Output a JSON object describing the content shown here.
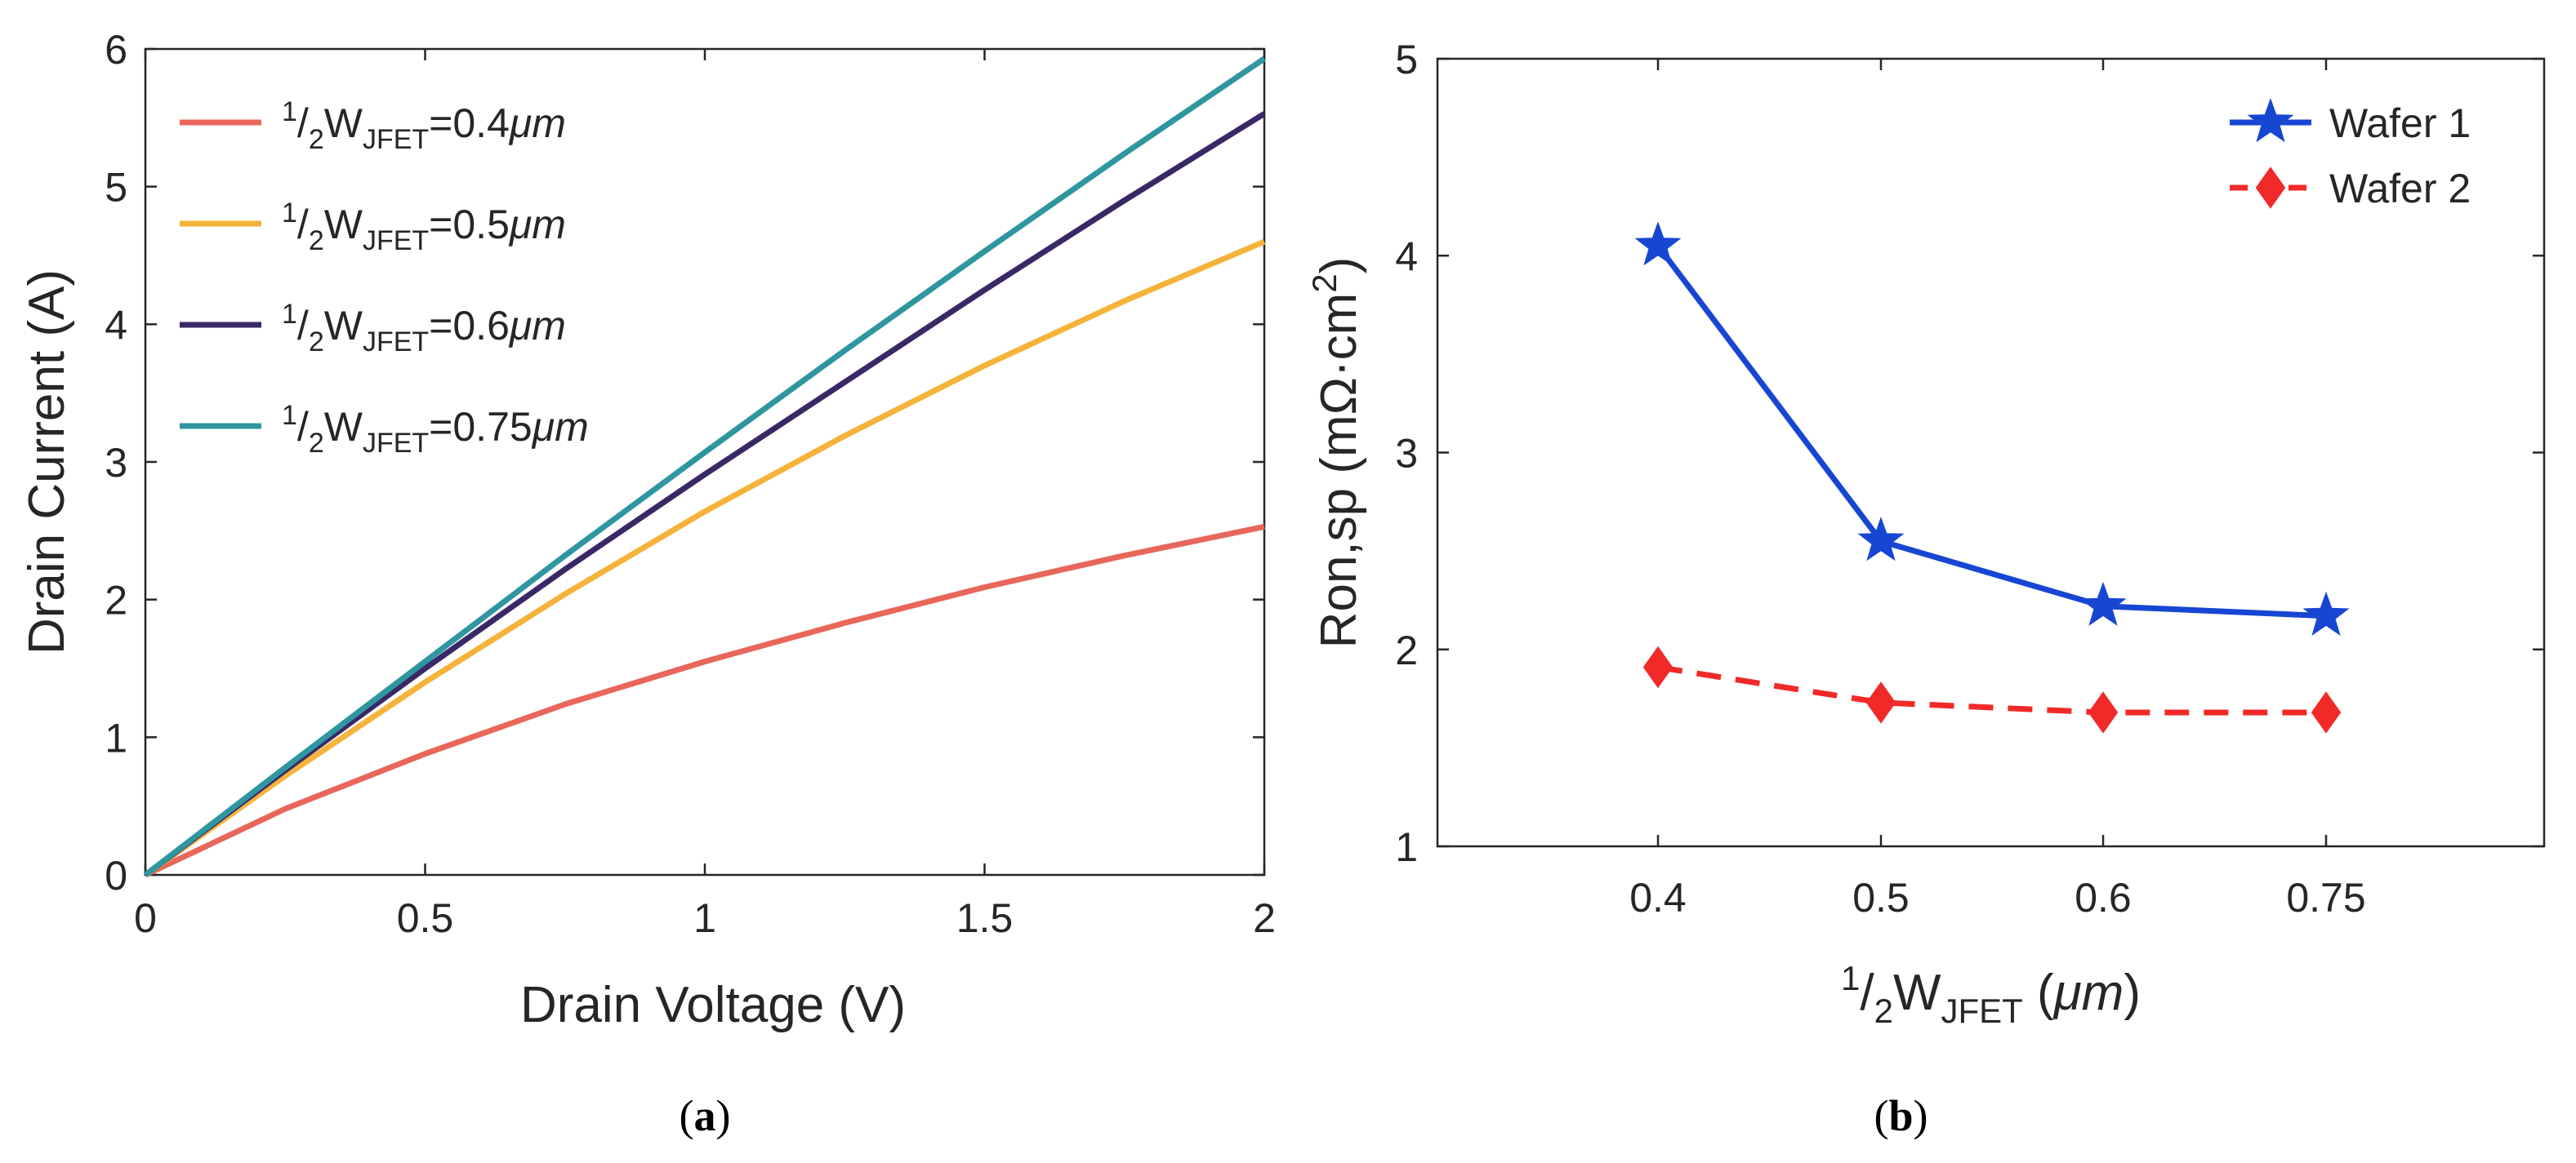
{
  "chart_data": [
    {
      "id": "a",
      "type": "line",
      "caption": "a",
      "xlabel": "Drain Voltage (V)",
      "ylabel": "Drain Current (A)",
      "xlim": [
        0,
        2
      ],
      "ylim": [
        0,
        6
      ],
      "xticks": [
        0,
        0.5,
        1,
        1.5,
        2
      ],
      "xtick_labels": [
        "0",
        "0.5",
        "1",
        "1.5",
        "2"
      ],
      "yticks": [
        0,
        1,
        2,
        3,
        4,
        5,
        6
      ],
      "ytick_labels": [
        "0",
        "1",
        "2",
        "3",
        "4",
        "5",
        "6"
      ],
      "legend_position": "top-left",
      "series": [
        {
          "name": "½W_JFET=0.4μm",
          "legend": {
            "pre": "1",
            "slash": "/",
            "two": "2",
            "w": "W",
            "sub": "JFET",
            "val": "=0.4",
            "unit": "μm"
          },
          "color": "#E8665A",
          "x": [
            0,
            0.25,
            0.5,
            0.75,
            1.0,
            1.25,
            1.5,
            1.75,
            2.0
          ],
          "y": [
            0,
            0.48,
            0.88,
            1.24,
            1.55,
            1.83,
            2.09,
            2.32,
            2.53
          ]
        },
        {
          "name": "½W_JFET=0.5μm",
          "legend": {
            "pre": "1",
            "slash": "/",
            "two": "2",
            "w": "W",
            "sub": "JFET",
            "val": "=0.5",
            "unit": "μm"
          },
          "color": "#F5B33B",
          "x": [
            0,
            0.25,
            0.5,
            0.75,
            1.0,
            1.25,
            1.5,
            1.75,
            2.0
          ],
          "y": [
            0,
            0.72,
            1.4,
            2.04,
            2.64,
            3.19,
            3.7,
            4.17,
            4.6
          ]
        },
        {
          "name": "½W_JFET=0.6μm",
          "legend": {
            "pre": "1",
            "slash": "/",
            "two": "2",
            "w": "W",
            "sub": "JFET",
            "val": "=0.6",
            "unit": "μm"
          },
          "color": "#3A2866",
          "x": [
            0,
            0.25,
            0.5,
            0.75,
            1.0,
            1.25,
            1.5,
            1.75,
            2.0
          ],
          "y": [
            0,
            0.76,
            1.5,
            2.22,
            2.91,
            3.58,
            4.25,
            4.9,
            5.53
          ]
        },
        {
          "name": "½W_JFET=0.75μm",
          "legend": {
            "pre": "1",
            "slash": "/",
            "two": "2",
            "w": "W",
            "sub": "JFET",
            "val": "=0.75",
            "unit": "μm"
          },
          "color": "#2F96A0",
          "x": [
            0,
            0.25,
            0.5,
            0.75,
            1.0,
            1.25,
            1.5,
            1.75,
            2.0
          ],
          "y": [
            0,
            0.78,
            1.55,
            2.32,
            3.07,
            3.81,
            4.53,
            5.24,
            5.93
          ]
        }
      ]
    },
    {
      "id": "b",
      "type": "line",
      "caption": "b",
      "xlabel": {
        "pre": "1",
        "slash": "/",
        "two": "2",
        "w": "W",
        "sub": "JFET",
        "rest": " (",
        "unit": "μm",
        "close": ")"
      },
      "ylabel": {
        "main": "Ron,sp (mΩ·cm",
        "sup": "2",
        "close": ")"
      },
      "ylim": [
        1,
        5
      ],
      "yticks": [
        1,
        2,
        3,
        4,
        5
      ],
      "ytick_labels": [
        "1",
        "2",
        "3",
        "4",
        "5"
      ],
      "categories": [
        "0.4",
        "0.5",
        "0.6",
        "0.75"
      ],
      "legend_position": "top-right",
      "series": [
        {
          "name": "Wafer 1",
          "color": "#1746D3",
          "marker": "star",
          "linestyle": "solid",
          "values": [
            4.05,
            2.55,
            2.22,
            2.17
          ]
        },
        {
          "name": "Wafer 2",
          "color": "#F02A28",
          "marker": "diamond",
          "linestyle": "dashed",
          "values": [
            1.91,
            1.73,
            1.68,
            1.68
          ]
        }
      ]
    }
  ]
}
